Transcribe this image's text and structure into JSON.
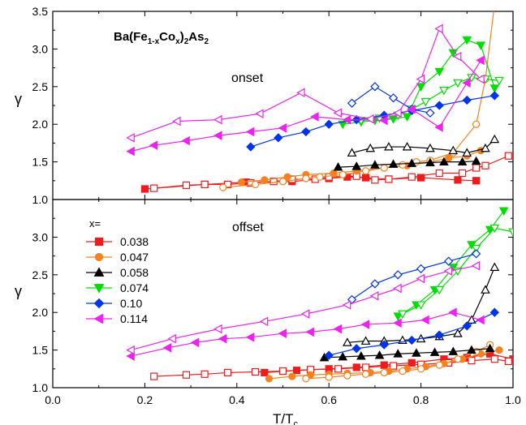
{
  "chart_data": [
    {
      "type": "scatter",
      "panel": "top",
      "title": "Ba(Fe1-xCox)2As2",
      "title_parts": {
        "base": "Ba(Fe",
        "sub1": "1-x",
        "mid1": "Co",
        "sub2": "x",
        "mid2": ")",
        "sub3": "2",
        "mid3": "As",
        "sub4": "2"
      },
      "annotation": "onset",
      "ylabel": "γ",
      "xlim": [
        0.0,
        1.0
      ],
      "ylim": [
        1.0,
        3.5
      ],
      "y_ticks": [
        "1.0",
        "1.5",
        "2.0",
        "2.5",
        "3.0",
        "3.5"
      ],
      "series": [
        {
          "name": "0.038",
          "color": "#ee1c1c",
          "marker": "square",
          "filled": true,
          "x": [
            0.2,
            0.33,
            0.42,
            0.52,
            0.6,
            0.64,
            0.68,
            0.73,
            0.8,
            0.88,
            0.92
          ],
          "y": [
            1.14,
            1.2,
            1.23,
            1.24,
            1.28,
            1.3,
            1.29,
            1.27,
            1.29,
            1.26,
            1.25
          ]
        },
        {
          "name": "0.038",
          "color": "#ee1c1c",
          "marker": "square",
          "filled": false,
          "x": [
            0.22,
            0.29,
            0.33,
            0.38,
            0.43,
            0.48,
            0.52,
            0.57,
            0.6,
            0.66,
            0.7,
            0.73,
            0.78,
            0.84,
            0.89,
            0.92,
            0.94,
            0.99
          ],
          "y": [
            1.15,
            1.19,
            1.2,
            1.2,
            1.22,
            1.24,
            1.27,
            1.27,
            1.3,
            1.31,
            1.26,
            1.27,
            1.3,
            1.35,
            1.35,
            1.42,
            1.45,
            1.58
          ]
        },
        {
          "name": "0.047",
          "color": "#f58220",
          "marker": "circle",
          "filled": true,
          "x": [
            0.41,
            0.46,
            0.51,
            0.55,
            0.61,
            0.66,
            0.72,
            0.77,
            0.82,
            0.86,
            0.9,
            0.93
          ],
          "y": [
            1.23,
            1.26,
            1.3,
            1.33,
            1.35,
            1.38,
            1.42,
            1.45,
            1.5,
            1.55,
            1.58,
            1.65
          ]
        },
        {
          "name": "0.047",
          "color": "#f58220",
          "marker": "circle",
          "filled": false,
          "x": [
            0.37,
            0.44,
            0.5,
            0.55,
            0.58,
            0.63,
            0.68,
            0.72,
            0.76,
            0.79,
            0.82,
            0.87,
            0.92,
            0.94,
            0.96
          ],
          "y": [
            1.16,
            1.2,
            1.24,
            1.28,
            1.3,
            1.33,
            1.38,
            1.42,
            1.46,
            1.5,
            1.52,
            1.62,
            2.0,
            2.6,
            3.6
          ]
        },
        {
          "name": "0.058",
          "color": "#000000",
          "marker": "triangle-up",
          "filled": true,
          "x": [
            0.62,
            0.66,
            0.7,
            0.74,
            0.78,
            0.82,
            0.85,
            0.89,
            0.92
          ],
          "y": [
            1.43,
            1.44,
            1.46,
            1.47,
            1.48,
            1.49,
            1.5,
            1.5,
            1.51
          ]
        },
        {
          "name": "0.058",
          "color": "#000000",
          "marker": "triangle-up",
          "filled": false,
          "x": [
            0.65,
            0.69,
            0.73,
            0.77,
            0.82,
            0.87,
            0.9,
            0.94,
            0.96
          ],
          "y": [
            1.62,
            1.68,
            1.7,
            1.7,
            1.68,
            1.65,
            1.62,
            1.68,
            1.8
          ]
        },
        {
          "name": "0.074",
          "color": "#00dd00",
          "marker": "triangle-down",
          "filled": true,
          "x": [
            0.63,
            0.67,
            0.7,
            0.74,
            0.77,
            0.8,
            0.84,
            0.87,
            0.9,
            0.93,
            0.96
          ],
          "y": [
            2.0,
            2.03,
            2.05,
            2.07,
            2.1,
            2.5,
            2.7,
            2.95,
            3.12,
            3.05,
            2.48
          ]
        },
        {
          "name": "0.074",
          "color": "#00dd00",
          "marker": "triangle-down",
          "filled": false,
          "x": [
            0.67,
            0.71,
            0.75,
            0.78,
            0.81,
            0.85,
            0.88,
            0.91,
            0.94,
            0.97
          ],
          "y": [
            2.05,
            2.08,
            2.12,
            2.2,
            2.3,
            2.45,
            2.55,
            2.62,
            2.6,
            2.58
          ]
        },
        {
          "name": "0.10",
          "color": "#0033ee",
          "marker": "diamond",
          "filled": true,
          "x": [
            0.43,
            0.49,
            0.55,
            0.6,
            0.66,
            0.72,
            0.78,
            0.84,
            0.9,
            0.96
          ],
          "y": [
            1.7,
            1.82,
            1.9,
            2.0,
            2.06,
            2.12,
            2.18,
            2.25,
            2.32,
            2.38
          ]
        },
        {
          "name": "0.10",
          "color": "#0033ee",
          "marker": "diamond",
          "filled": false,
          "x": [
            0.65,
            0.7,
            0.74,
            0.78,
            0.82
          ],
          "y": [
            2.28,
            2.5,
            2.35,
            2.2,
            2.15
          ]
        },
        {
          "name": "0.114",
          "color": "#ee22ee",
          "marker": "triangle-left",
          "filled": true,
          "x": [
            0.17,
            0.22,
            0.29,
            0.36,
            0.43,
            0.5,
            0.57,
            0.64,
            0.72,
            0.78,
            0.84,
            0.9,
            0.93
          ],
          "y": [
            1.64,
            1.72,
            1.78,
            1.85,
            1.9,
            1.95,
            2.1,
            2.06,
            2.05,
            2.2,
            1.96,
            2.55,
            2.85
          ]
        },
        {
          "name": "0.114",
          "color": "#ee22ee",
          "marker": "triangle-left",
          "filled": false,
          "x": [
            0.17,
            0.27,
            0.36,
            0.45,
            0.54,
            0.62,
            0.69,
            0.75,
            0.8,
            0.84,
            0.88,
            0.93
          ],
          "y": [
            1.82,
            2.04,
            2.06,
            2.14,
            2.42,
            2.15,
            2.07,
            2.15,
            2.6,
            3.27,
            2.9,
            2.6
          ]
        }
      ]
    },
    {
      "type": "scatter",
      "panel": "bottom",
      "annotation": "offset",
      "xlabel": "T/T",
      "xlabel_sub": "c",
      "ylabel": "γ",
      "xlim": [
        0.0,
        1.0
      ],
      "ylim": [
        1.0,
        3.5
      ],
      "x_ticks": [
        "0.0",
        "0.2",
        "0.4",
        "0.6",
        "0.8",
        "1.0"
      ],
      "y_ticks": [
        "1.0",
        "1.5",
        "2.0",
        "2.5",
        "3.0"
      ],
      "legend": {
        "title": "x=",
        "placement": "top-left",
        "entries": [
          {
            "label": "0.038",
            "color": "#ee1c1c",
            "marker": "square"
          },
          {
            "label": "0.047",
            "color": "#f58220",
            "marker": "circle"
          },
          {
            "label": "0.058",
            "color": "#000000",
            "marker": "triangle-up"
          },
          {
            "label": "0.074",
            "color": "#00dd00",
            "marker": "triangle-down"
          },
          {
            "label": "0.10",
            "color": "#0033ee",
            "marker": "diamond"
          },
          {
            "label": "0.114",
            "color": "#ee22ee",
            "marker": "triangle-left"
          }
        ]
      },
      "series": [
        {
          "name": "0.038",
          "color": "#ee1c1c",
          "marker": "square",
          "filled": true,
          "x": [
            0.46,
            0.53,
            0.6,
            0.66,
            0.72,
            0.78,
            0.85,
            0.9,
            0.95,
            1.0
          ],
          "y": [
            1.2,
            1.23,
            1.25,
            1.27,
            1.3,
            1.33,
            1.38,
            1.4,
            1.45,
            1.38
          ]
        },
        {
          "name": "0.038",
          "color": "#ee1c1c",
          "marker": "square",
          "filled": false,
          "x": [
            0.22,
            0.29,
            0.33,
            0.38,
            0.44,
            0.5,
            0.56,
            0.62,
            0.68,
            0.74,
            0.8,
            0.86,
            0.91,
            0.96,
            0.99
          ],
          "y": [
            1.15,
            1.17,
            1.18,
            1.2,
            1.21,
            1.22,
            1.24,
            1.25,
            1.27,
            1.29,
            1.31,
            1.33,
            1.36,
            1.38,
            1.35
          ]
        },
        {
          "name": "0.047",
          "color": "#f58220",
          "marker": "circle",
          "filled": true,
          "x": [
            0.47,
            0.52,
            0.56,
            0.6,
            0.64,
            0.69,
            0.73,
            0.77,
            0.81,
            0.85,
            0.89,
            0.93,
            0.97
          ],
          "y": [
            1.12,
            1.15,
            1.17,
            1.18,
            1.19,
            1.2,
            1.22,
            1.25,
            1.28,
            1.32,
            1.38,
            1.45,
            1.5
          ]
        },
        {
          "name": "0.047",
          "color": "#f58220",
          "marker": "circle",
          "filled": false,
          "x": [
            0.55,
            0.6,
            0.64,
            0.68,
            0.72,
            0.76,
            0.8,
            0.84,
            0.88,
            0.92,
            0.95
          ],
          "y": [
            1.12,
            1.14,
            1.16,
            1.18,
            1.2,
            1.22,
            1.25,
            1.3,
            1.38,
            1.48,
            1.57
          ]
        },
        {
          "name": "0.058",
          "color": "#000000",
          "marker": "triangle-up",
          "filled": true,
          "x": [
            0.59,
            0.63,
            0.67,
            0.71,
            0.75,
            0.79,
            0.83,
            0.87,
            0.91,
            0.95
          ],
          "y": [
            1.4,
            1.41,
            1.42,
            1.43,
            1.45,
            1.46,
            1.47,
            1.48,
            1.5,
            1.52
          ]
        },
        {
          "name": "0.058",
          "color": "#000000",
          "marker": "triangle-up",
          "filled": false,
          "x": [
            0.64,
            0.68,
            0.72,
            0.76,
            0.8,
            0.84,
            0.88,
            0.91,
            0.94,
            0.96
          ],
          "y": [
            1.6,
            1.62,
            1.62,
            1.63,
            1.65,
            1.68,
            1.72,
            1.9,
            2.3,
            2.6
          ]
        },
        {
          "name": "0.074",
          "color": "#00dd00",
          "marker": "triangle-down",
          "filled": true,
          "x": [
            0.75,
            0.79,
            0.83,
            0.87,
            0.91,
            0.95,
            0.98
          ],
          "y": [
            1.95,
            2.1,
            2.3,
            2.6,
            2.9,
            3.1,
            3.35
          ]
        },
        {
          "name": "0.074",
          "color": "#00dd00",
          "marker": "triangle-down",
          "filled": false,
          "x": [
            0.76,
            0.8,
            0.84,
            0.88,
            0.92,
            0.96,
            1.0
          ],
          "y": [
            1.98,
            2.1,
            2.3,
            2.55,
            2.85,
            3.12,
            3.07
          ]
        },
        {
          "name": "0.10",
          "color": "#0033ee",
          "marker": "diamond",
          "filled": true,
          "x": [
            0.6,
            0.66,
            0.72,
            0.78,
            0.84,
            0.9,
            0.96
          ],
          "y": [
            1.43,
            1.52,
            1.57,
            1.63,
            1.7,
            1.82,
            2.0
          ]
        },
        {
          "name": "0.10",
          "color": "#0033ee",
          "marker": "diamond",
          "filled": false,
          "x": [
            0.65,
            0.7,
            0.75,
            0.8,
            0.86,
            0.92
          ],
          "y": [
            2.17,
            2.38,
            2.5,
            2.58,
            2.68,
            2.78
          ]
        },
        {
          "name": "0.114",
          "color": "#ee22ee",
          "marker": "triangle-left",
          "filled": true,
          "x": [
            0.17,
            0.25,
            0.31,
            0.37,
            0.43,
            0.5,
            0.56,
            0.62,
            0.68,
            0.75,
            0.81,
            0.87,
            0.93
          ],
          "y": [
            1.42,
            1.53,
            1.6,
            1.65,
            1.67,
            1.72,
            1.74,
            1.78,
            1.84,
            1.86,
            1.9,
            2.0,
            1.9
          ]
        },
        {
          "name": "0.114",
          "color": "#ee22ee",
          "marker": "triangle-left",
          "filled": false,
          "x": [
            0.17,
            0.26,
            0.36,
            0.46,
            0.55,
            0.64,
            0.7,
            0.75,
            0.8,
            0.86,
            0.92
          ],
          "y": [
            1.5,
            1.65,
            1.78,
            1.88,
            1.98,
            2.1,
            2.22,
            2.32,
            2.45,
            2.55,
            2.62
          ]
        }
      ]
    }
  ]
}
